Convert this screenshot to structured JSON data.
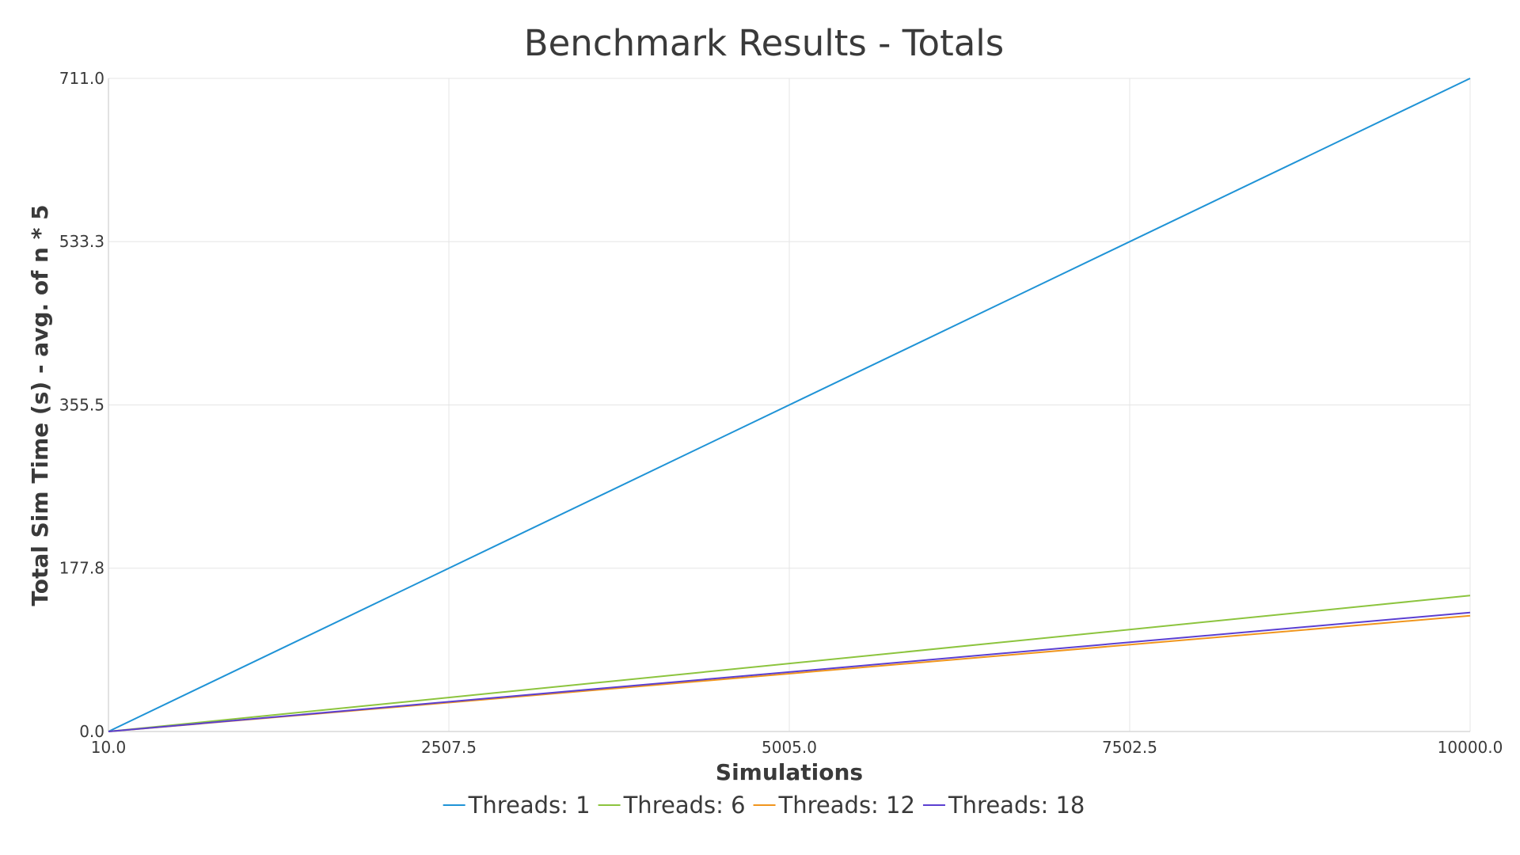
{
  "chart_data": {
    "type": "line",
    "title": "Benchmark Results - Totals",
    "xlabel": "Simulations",
    "ylabel": "Total Sim Time (s) - avg. of n * 5",
    "xlim": [
      10.0,
      10000.0
    ],
    "ylim": [
      0.0,
      711.0
    ],
    "x_ticks": [
      "10.0",
      "2507.5",
      "5005.0",
      "7502.5",
      "10000.0"
    ],
    "y_ticks": [
      "0.0",
      "177.8",
      "355.5",
      "533.3",
      "711.0"
    ],
    "grid": true,
    "legend_position": "bottom-center",
    "series": [
      {
        "name": "Threads: 1",
        "color": "#1f93d6",
        "x": [
          10,
          10000
        ],
        "y": [
          0.0,
          711.0
        ]
      },
      {
        "name": "Threads: 6",
        "color": "#8cc43e",
        "x": [
          10,
          10000
        ],
        "y": [
          0.0,
          148.0
        ]
      },
      {
        "name": "Threads: 12",
        "color": "#f0951d",
        "x": [
          10,
          10000
        ],
        "y": [
          0.0,
          126.0
        ]
      },
      {
        "name": "Threads: 18",
        "color": "#5b3fd1",
        "x": [
          10,
          10000
        ],
        "y": [
          0.0,
          129.5
        ]
      }
    ]
  }
}
